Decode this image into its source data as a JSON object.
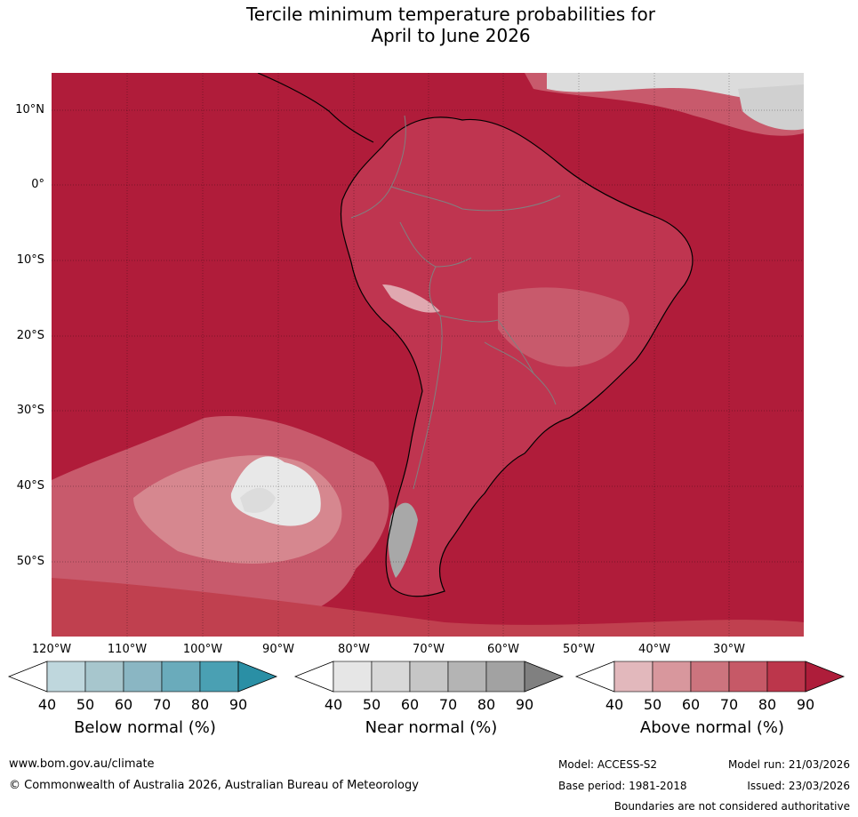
{
  "title_line1": "Tercile minimum temperature probabilities for",
  "title_line2": "April to June 2026",
  "map": {
    "lat_labels": [
      "10°N",
      "0°",
      "10°S",
      "20°S",
      "30°S",
      "40°S",
      "50°S"
    ],
    "lon_labels": [
      "120°W",
      "110°W",
      "100°W",
      "90°W",
      "80°W",
      "70°W",
      "60°W",
      "50°W",
      "40°W",
      "30°W"
    ],
    "colors": {
      "ocean_above_90": "#b01c3a",
      "land_above_80": "#bf3550",
      "above_70": "#c85a6c",
      "above_60": "#d6878f",
      "near_normal": "#dcdcdc",
      "coastline": "#000000",
      "borders": "#808080"
    }
  },
  "colorbars": [
    {
      "name": "Below normal (%)",
      "ticks": [
        "40",
        "50",
        "60",
        "70",
        "80",
        "90"
      ],
      "colors": [
        "#ffffff",
        "#bfd7dd",
        "#a7c6cd",
        "#8ab6c3",
        "#6aabbb",
        "#4aa0b3",
        "#2a8fa5"
      ]
    },
    {
      "name": "Near normal (%)",
      "ticks": [
        "40",
        "50",
        "60",
        "70",
        "80",
        "90"
      ],
      "colors": [
        "#ffffff",
        "#e6e6e6",
        "#d8d8d8",
        "#c6c6c6",
        "#b4b4b4",
        "#a2a2a2",
        "#808080"
      ]
    },
    {
      "name": "Above normal (%)",
      "ticks": [
        "40",
        "50",
        "60",
        "70",
        "80",
        "90"
      ],
      "colors": [
        "#ffffff",
        "#e2b8bc",
        "#d8979d",
        "#cc747e",
        "#c65967",
        "#bc364b",
        "#ae1d3a"
      ]
    }
  ],
  "footer": {
    "website": "www.bom.gov.au/climate",
    "copyright": "© Commonwealth of Australia 2026, Australian Bureau of Meteorology",
    "model": "Model: ACCESS-S2",
    "model_run": "Model run: 21/03/2026",
    "base_period": "Base period: 1981-2018",
    "issued": "Issued: 23/03/2026",
    "disclaimer": "Boundaries are not considered authoritative"
  }
}
